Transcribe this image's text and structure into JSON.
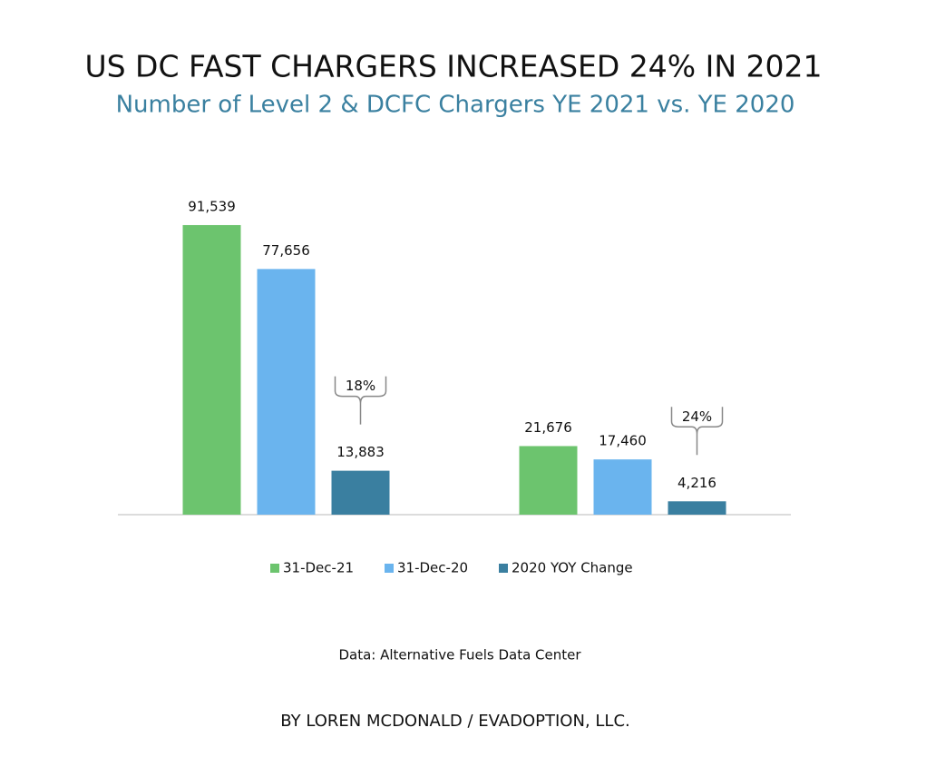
{
  "chart_data": {
    "type": "bar",
    "title": "US DC FAST CHARGERS INCREASED 24% IN 2021",
    "subtitle": "Number of Level 2 & DCFC Chargers YE 2021 vs. YE 2020",
    "categories": [
      null,
      null
    ],
    "series": [
      {
        "name": "31-Dec-21",
        "color": "#6cc46e",
        "values": [
          91539,
          21676
        ],
        "value_labels": [
          "91,539",
          "21,676"
        ]
      },
      {
        "name": "31-Dec-20",
        "color": "#6ab4ee",
        "values": [
          77656,
          17460
        ],
        "value_labels": [
          "77,656",
          "17,460"
        ]
      },
      {
        "name": "2020 YOY Change",
        "color": "#3a7fa0",
        "values": [
          13883,
          4216
        ],
        "value_labels": [
          "13,883",
          "4,216"
        ]
      }
    ],
    "annotations": [
      "18%",
      "24%"
    ],
    "ylim": [
      0,
      100000
    ],
    "source": "Data: Alternative Fuels Data Center",
    "byline": "BY LOREN MCDONALD / EVADOPTION, LLC."
  }
}
